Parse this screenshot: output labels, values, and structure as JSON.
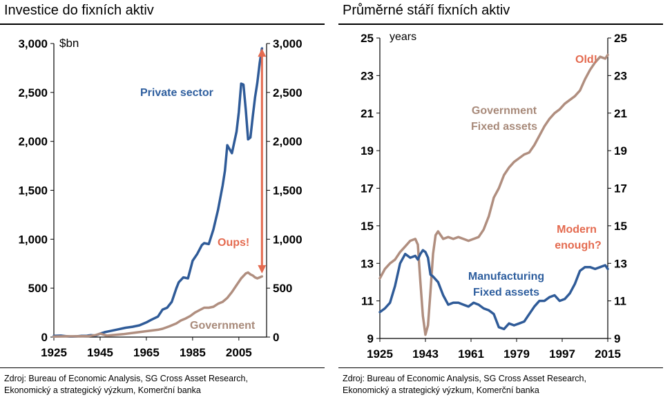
{
  "colors": {
    "blue": "#2f5b98",
    "brown": "#b08e7f",
    "red": "#e46a4f",
    "blue_text": "#2e5e9e",
    "brown_text": "#a88a7a",
    "red_text": "#e46a4f"
  },
  "left": {
    "title": "Investice do fixních aktiv",
    "unit_label": "$bn",
    "source_line1": "Zdroj: Bureau of Economic Analysis, SG Cross Asset Research,",
    "source_line2": "Ekonomický a strategický výzkum, Komerční banka",
    "annotations": {
      "private": "Private sector",
      "government": "Government",
      "oups": "Oups!"
    }
  },
  "right": {
    "title": "Průměrné stáří fixních aktiv",
    "unit_label": "years",
    "source_line1": "Zdroj: Bureau of Economic Analysis, SG Cross Asset Research,",
    "source_line2": "Ekonomický a strategický výzkum, Komerční banka",
    "annotations": {
      "gov1": "Government",
      "gov2": "Fixed assets",
      "old": "Old!",
      "modern1": "Modern",
      "modern2": "enough?",
      "manu1": "Manufacturing",
      "manu2": "Fixed assets"
    }
  },
  "chart_data": [
    {
      "type": "line",
      "title": "Investice do fixních aktiv",
      "ylabel": "$bn",
      "xlim": [
        1925,
        2017
      ],
      "ylim": [
        0,
        3000
      ],
      "x_ticks": [
        "1925",
        "1945",
        "1965",
        "1985",
        "2005"
      ],
      "y_ticks": [
        "0",
        "500",
        "1,000",
        "1,500",
        "2,000",
        "2,500",
        "3,000"
      ],
      "annotations": [
        "Private sector",
        "Government",
        "Oups!"
      ],
      "arrow": {
        "x": 2015,
        "from": 2950,
        "to": 650
      },
      "series": [
        {
          "name": "Private sector",
          "x": [
            1925,
            1928,
            1930,
            1932,
            1933,
            1935,
            1937,
            1939,
            1941,
            1943,
            1945,
            1947,
            1950,
            1953,
            1956,
            1959,
            1962,
            1965,
            1967,
            1970,
            1972,
            1974,
            1976,
            1978,
            1979,
            1981,
            1983,
            1985,
            1987,
            1989,
            1990,
            1992,
            1994,
            1996,
            1998,
            1999,
            2000,
            2002,
            2004,
            2005,
            2006,
            2007,
            2008,
            2009,
            2010,
            2011,
            2012,
            2013,
            2014,
            2015
          ],
          "y": [
            12,
            15,
            10,
            5,
            5,
            8,
            12,
            12,
            20,
            15,
            35,
            50,
            65,
            80,
            95,
            105,
            120,
            150,
            175,
            210,
            280,
            300,
            360,
            500,
            560,
            610,
            600,
            780,
            850,
            940,
            960,
            950,
            1100,
            1300,
            1550,
            1700,
            1960,
            1880,
            2100,
            2300,
            2590,
            2580,
            2320,
            2020,
            2040,
            2250,
            2450,
            2600,
            2800,
            2950
          ]
        },
        {
          "name": "Government",
          "x": [
            1925,
            1930,
            1935,
            1940,
            1943,
            1945,
            1948,
            1950,
            1955,
            1960,
            1965,
            1970,
            1972,
            1975,
            1978,
            1980,
            1982,
            1984,
            1986,
            1988,
            1990,
            1992,
            1994,
            1996,
            1998,
            2000,
            2002,
            2004,
            2006,
            2008,
            2009,
            2010,
            2011,
            2012,
            2013,
            2014,
            2015
          ],
          "y": [
            5,
            8,
            8,
            10,
            20,
            35,
            15,
            20,
            30,
            45,
            60,
            75,
            85,
            110,
            140,
            170,
            190,
            215,
            250,
            275,
            300,
            300,
            310,
            340,
            360,
            400,
            460,
            530,
            600,
            650,
            660,
            640,
            630,
            610,
            600,
            610,
            620
          ]
        }
      ]
    },
    {
      "type": "line",
      "title": "Průměrné stáří fixních aktiv",
      "ylabel": "years",
      "xlim": [
        1925,
        2015
      ],
      "ylim": [
        9,
        25
      ],
      "x_ticks": [
        "1925",
        "1943",
        "1961",
        "1979",
        "1997",
        "2015"
      ],
      "y_ticks": [
        "9",
        "11",
        "13",
        "15",
        "17",
        "19",
        "21",
        "23",
        "25"
      ],
      "annotations": [
        "Government Fixed assets",
        "Old!",
        "Modern enough?",
        "Manufacturing Fixed assets"
      ],
      "series": [
        {
          "name": "Government Fixed assets",
          "x": [
            1925,
            1927,
            1929,
            1931,
            1933,
            1935,
            1937,
            1939,
            1940,
            1941,
            1942,
            1943,
            1944,
            1945,
            1946,
            1947,
            1948,
            1950,
            1952,
            1954,
            1956,
            1958,
            1960,
            1962,
            1964,
            1966,
            1968,
            1970,
            1972,
            1974,
            1976,
            1978,
            1980,
            1982,
            1984,
            1986,
            1988,
            1990,
            1992,
            1994,
            1996,
            1998,
            2000,
            2002,
            2004,
            2006,
            2008,
            2010,
            2012,
            2014,
            2015
          ],
          "y": [
            12.2,
            12.7,
            13.0,
            13.2,
            13.6,
            13.9,
            14.2,
            14.3,
            14.0,
            12.0,
            10.2,
            9.2,
            9.7,
            11.5,
            13.5,
            14.5,
            14.7,
            14.3,
            14.4,
            14.3,
            14.4,
            14.3,
            14.2,
            14.3,
            14.4,
            14.8,
            15.5,
            16.5,
            17.0,
            17.7,
            18.1,
            18.4,
            18.6,
            18.8,
            18.9,
            19.3,
            19.8,
            20.3,
            20.7,
            21.0,
            21.2,
            21.5,
            21.7,
            21.9,
            22.2,
            22.8,
            23.3,
            23.7,
            24.0,
            23.9,
            24.1
          ]
        },
        {
          "name": "Manufacturing Fixed assets",
          "x": [
            1925,
            1927,
            1929,
            1931,
            1933,
            1935,
            1937,
            1939,
            1940,
            1941,
            1942,
            1943,
            1944,
            1945,
            1946,
            1948,
            1950,
            1952,
            1954,
            1956,
            1958,
            1960,
            1962,
            1964,
            1966,
            1968,
            1970,
            1972,
            1974,
            1976,
            1978,
            1980,
            1982,
            1984,
            1986,
            1988,
            1990,
            1992,
            1994,
            1996,
            1998,
            2000,
            2002,
            2004,
            2006,
            2008,
            2010,
            2012,
            2014,
            2015
          ],
          "y": [
            10.4,
            10.6,
            10.9,
            11.8,
            13.0,
            13.5,
            13.3,
            13.4,
            13.2,
            13.5,
            13.7,
            13.6,
            13.3,
            12.4,
            12.3,
            12.0,
            11.3,
            10.8,
            10.9,
            10.9,
            10.8,
            10.7,
            10.9,
            10.8,
            10.6,
            10.5,
            10.3,
            9.6,
            9.5,
            9.8,
            9.7,
            9.8,
            9.9,
            10.3,
            10.7,
            11.0,
            11.0,
            11.2,
            11.3,
            11.0,
            11.1,
            11.4,
            11.9,
            12.6,
            12.8,
            12.8,
            12.7,
            12.8,
            12.9,
            12.7
          ]
        }
      ]
    }
  ]
}
